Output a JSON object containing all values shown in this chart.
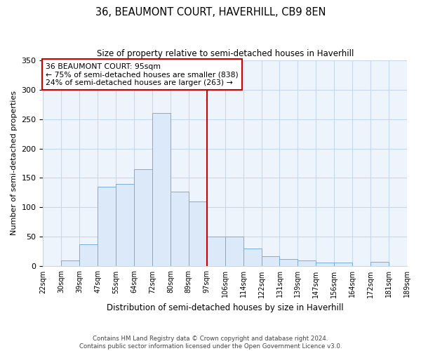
{
  "title": "36, BEAUMONT COURT, HAVERHILL, CB9 8EN",
  "subtitle": "Size of property relative to semi-detached houses in Haverhill",
  "xlabel": "Distribution of semi-detached houses by size in Haverhill",
  "ylabel": "Number of semi-detached properties",
  "footer_line1": "Contains HM Land Registry data © Crown copyright and database right 2024.",
  "footer_line2": "Contains public sector information licensed under the Open Government Licence v3.0.",
  "categories": [
    "22sqm",
    "30sqm",
    "39sqm",
    "47sqm",
    "55sqm",
    "64sqm",
    "72sqm",
    "80sqm",
    "89sqm",
    "97sqm",
    "106sqm",
    "114sqm",
    "122sqm",
    "131sqm",
    "139sqm",
    "147sqm",
    "156sqm",
    "164sqm",
    "172sqm",
    "181sqm",
    "189sqm"
  ],
  "values": [
    0,
    10,
    37,
    135,
    140,
    165,
    260,
    127,
    110,
    50,
    50,
    30,
    17,
    12,
    10,
    7,
    7,
    0,
    8,
    0,
    5
  ],
  "bar_color": "#dce9f8",
  "bar_edge_color": "#7aaddb",
  "plot_bg_color": "#eef4fc",
  "grid_color": "#c8d8ec",
  "ylim": [
    0,
    350
  ],
  "yticks": [
    0,
    50,
    100,
    150,
    200,
    250,
    300,
    350
  ],
  "annotation_box_title": "36 BEAUMONT COURT: 95sqm",
  "annotation_line1": "← 75% of semi-detached houses are smaller (838)",
  "annotation_line2": "24% of semi-detached houses are larger (263) →",
  "vline_category_index": 9,
  "vline_color": "#cc0000",
  "annotation_box_color": "#ffffff",
  "annotation_box_edge_color": "#cc0000"
}
